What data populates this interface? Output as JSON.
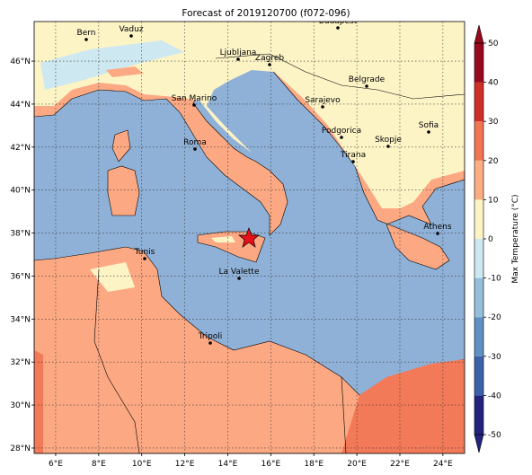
{
  "title": "Forecast of 2019120700 (f072-096)",
  "map": {
    "xticks": [
      {
        "value": 6,
        "label": "6°E"
      },
      {
        "value": 8,
        "label": "8°E"
      },
      {
        "value": 10,
        "label": "10°E"
      },
      {
        "value": 12,
        "label": "12°E"
      },
      {
        "value": 14,
        "label": "14°E"
      },
      {
        "value": 16,
        "label": "16°E"
      },
      {
        "value": 18,
        "label": "18°E"
      },
      {
        "value": 20,
        "label": "20°E"
      },
      {
        "value": 22,
        "label": "22°E"
      },
      {
        "value": 24,
        "label": "24°E"
      }
    ],
    "yticks": [
      {
        "value": 28,
        "label": "28°N"
      },
      {
        "value": 30,
        "label": "30°N"
      },
      {
        "value": 32,
        "label": "32°N"
      },
      {
        "value": 34,
        "label": "34°N"
      },
      {
        "value": 36,
        "label": "36°N"
      },
      {
        "value": 38,
        "label": "38°N"
      },
      {
        "value": 40,
        "label": "40°N"
      },
      {
        "value": 42,
        "label": "42°N"
      },
      {
        "value": 44,
        "label": "44°N"
      },
      {
        "value": 46,
        "label": "46°N"
      }
    ],
    "cities": [
      "Bern",
      "Vaduz",
      "Budapest",
      "Ljubljana",
      "Zagreb",
      "Belgrade",
      "San Marino",
      "Sarajevo",
      "Sofia",
      "Podgorica",
      "Skopje",
      "Roma",
      "Tirana",
      "Athens",
      "Tunis",
      "La Valette",
      "Tripoli"
    ]
  },
  "colorbar": {
    "label": "Max Temperature (°C)",
    "ticks": [
      -50,
      -40,
      -30,
      -20,
      -10,
      0,
      10,
      20,
      30,
      40,
      50
    ],
    "colors": [
      "#23237e",
      "#3b62a8",
      "#5d90c3",
      "#93bfda",
      "#cde8f0",
      "#fdf4c6",
      "#fcad82",
      "#f17553",
      "#cf2f27",
      "#98081e"
    ]
  }
}
